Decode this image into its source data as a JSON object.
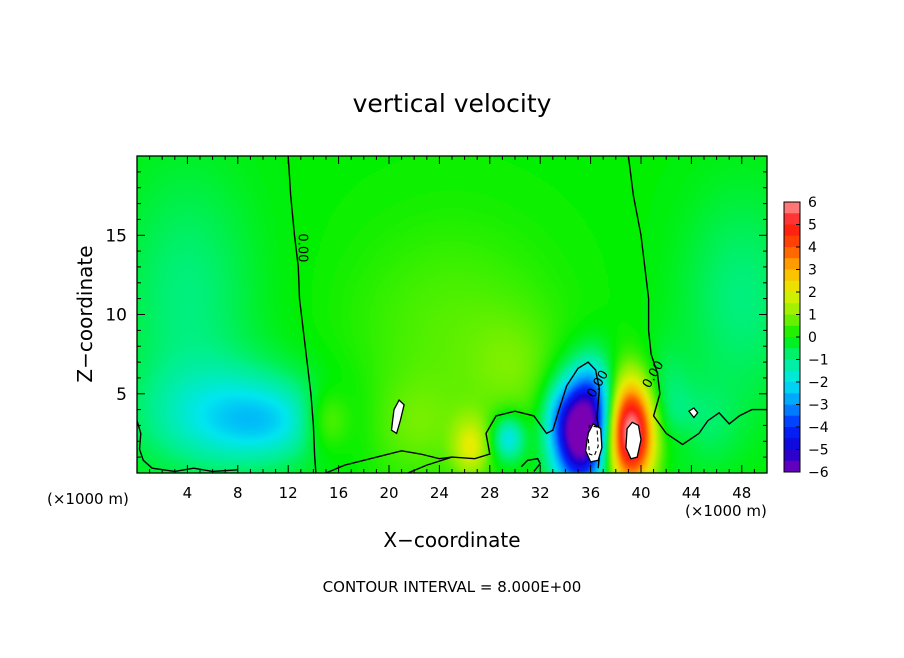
{
  "chart_data": {
    "type": "heatmap",
    "title": "vertical velocity",
    "xlabel": "X−coordinate",
    "ylabel": "Z−coordinate",
    "x_unit_left": "(×1000 m)",
    "x_unit_right": "(×1000 m)",
    "xlim": [
      0,
      50
    ],
    "ylim": [
      0,
      20
    ],
    "x_ticks": [
      4,
      8,
      12,
      16,
      20,
      24,
      28,
      32,
      36,
      40,
      44,
      48
    ],
    "y_ticks": [
      5,
      10,
      15
    ],
    "footer": "CONTOUR INTERVAL = 8.000E+00",
    "contour_label": "0.00",
    "colorbar": {
      "min": -6,
      "max": 6,
      "labels": [
        "6",
        "5",
        "4",
        "3",
        "2",
        "1",
        "0",
        "−1",
        "−2",
        "−3",
        "−4",
        "−5",
        "−6"
      ],
      "stops": [
        {
          "v": -6,
          "c": "#7a00b4"
        },
        {
          "v": -5,
          "c": "#1400d2"
        },
        {
          "v": -4,
          "c": "#0028ff"
        },
        {
          "v": -3,
          "c": "#0096ff"
        },
        {
          "v": -2,
          "c": "#00e6f0"
        },
        {
          "v": -1,
          "c": "#00f08c"
        },
        {
          "v": 0,
          "c": "#00f000"
        },
        {
          "v": 1,
          "c": "#8cf000"
        },
        {
          "v": 2,
          "c": "#e6ee00"
        },
        {
          "v": 3,
          "c": "#ffb400"
        },
        {
          "v": 4,
          "c": "#ff5000"
        },
        {
          "v": 5,
          "c": "#ff1414"
        },
        {
          "v": 6,
          "c": "#ff9696"
        }
      ]
    },
    "features": [
      {
        "x": 35.2,
        "z": 2.4,
        "amp": -6.5,
        "sx": 1.5,
        "sz": 2.4
      },
      {
        "x": 39.2,
        "z": 2.6,
        "amp": 6.8,
        "sx": 1.4,
        "sz": 2.3
      },
      {
        "x": 8,
        "z": 3.5,
        "amp": -1.7,
        "sx": 5,
        "sz": 2.3
      },
      {
        "x": 10.5,
        "z": 3.2,
        "amp": -0.8,
        "sx": 3,
        "sz": 1.5
      },
      {
        "x": 4,
        "z": 11,
        "amp": -0.9,
        "sx": 4,
        "sz": 6
      },
      {
        "x": 48,
        "z": 11,
        "amp": -0.9,
        "sx": 3.5,
        "sz": 5
      },
      {
        "x": 29.5,
        "z": 2.2,
        "amp": -2.2,
        "sx": 0.9,
        "sz": 1
      },
      {
        "x": 26.5,
        "z": 1.6,
        "amp": 1.7,
        "sx": 1,
        "sz": 1.3
      },
      {
        "x": 15,
        "z": 3.3,
        "amp": 1.2,
        "sx": 1.3,
        "sz": 1.4
      },
      {
        "x": 22,
        "z": 2.8,
        "amp": 0.6,
        "sx": 2.8,
        "sz": 2.2
      },
      {
        "x": 36.5,
        "z": 4.5,
        "amp": -2,
        "sx": 1.2,
        "sz": 2
      },
      {
        "x": 33.5,
        "z": 3.5,
        "amp": -0.9,
        "sx": 1,
        "sz": 1.5
      },
      {
        "x": 25,
        "z": 9,
        "amp": 0.6,
        "sx": 6,
        "sz": 5
      },
      {
        "x": 30,
        "z": 6.5,
        "amp": 0.5,
        "sx": 2.5,
        "sz": 2.5
      },
      {
        "x": 41.5,
        "z": 4,
        "amp": -1.1,
        "sx": 1.5,
        "sz": 2.5
      },
      {
        "x": 45,
        "z": 3,
        "amp": -0.6,
        "sx": 2,
        "sz": 2
      },
      {
        "x": 43,
        "z": 2,
        "amp": 0.4,
        "sx": 1.2,
        "sz": 1
      }
    ],
    "zero_contours": [
      [
        [
          12,
          20
        ],
        [
          12.2,
          17.5
        ],
        [
          12.5,
          15
        ],
        [
          12.8,
          13
        ],
        [
          12.9,
          11
        ],
        [
          13.2,
          9
        ],
        [
          13.5,
          7
        ],
        [
          13.8,
          5
        ],
        [
          14,
          3
        ],
        [
          14.1,
          1
        ],
        [
          14.2,
          0
        ]
      ],
      [
        [
          39,
          20
        ],
        [
          39.4,
          17.5
        ],
        [
          40,
          15
        ],
        [
          40.3,
          13
        ],
        [
          40.6,
          11
        ],
        [
          40.6,
          9
        ],
        [
          40.8,
          7.5
        ],
        [
          41.3,
          6.3
        ],
        [
          41.5,
          5
        ],
        [
          41,
          3.6
        ],
        [
          42,
          2.5
        ],
        [
          43.3,
          1.8
        ],
        [
          44.6,
          2.5
        ],
        [
          45.3,
          3.3
        ],
        [
          46.2,
          3.8
        ],
        [
          47,
          3.1
        ],
        [
          47.8,
          3.6
        ],
        [
          48.8,
          4
        ],
        [
          50,
          4
        ]
      ],
      [
        [
          0,
          3.3
        ],
        [
          0.3,
          2.5
        ],
        [
          0.2,
          1.5
        ],
        [
          0.5,
          0.8
        ],
        [
          1.2,
          0.3
        ],
        [
          3,
          0.1
        ],
        [
          4.5,
          0.3
        ],
        [
          6,
          0.1
        ],
        [
          8,
          0.2
        ]
      ],
      [
        [
          21.5,
          0
        ],
        [
          23,
          0.5
        ],
        [
          25,
          1
        ],
        [
          26.8,
          0.9
        ],
        [
          28,
          1.2
        ],
        [
          27.7,
          2.5
        ],
        [
          28.5,
          3.6
        ],
        [
          30,
          3.9
        ],
        [
          31.5,
          3.6
        ],
        [
          32.5,
          2.5
        ],
        [
          33,
          2.7
        ],
        [
          33.5,
          4
        ],
        [
          34.1,
          5.5
        ],
        [
          35,
          6.6
        ],
        [
          35.8,
          7
        ],
        [
          36.4,
          6.5
        ],
        [
          36.7,
          5.3
        ],
        [
          36.5,
          3.5
        ],
        [
          36.8,
          2
        ],
        [
          36.6,
          0.3
        ]
      ],
      [
        [
          15,
          0
        ],
        [
          16.5,
          0.5
        ],
        [
          18,
          0.8
        ],
        [
          19.5,
          1.1
        ],
        [
          21,
          1.4
        ],
        [
          22.5,
          1.2
        ],
        [
          24,
          0.9
        ],
        [
          25,
          1
        ]
      ],
      [
        [
          30.5,
          0.4
        ],
        [
          31,
          0.8
        ],
        [
          31.8,
          0.9
        ],
        [
          32,
          0.6
        ],
        [
          31.5,
          0.1
        ]
      ]
    ],
    "closed_contours": [
      [
        [
          20.4,
          4
        ],
        [
          20.8,
          4.6
        ],
        [
          21.2,
          4.3
        ],
        [
          20.9,
          3.3
        ],
        [
          20.6,
          2.5
        ],
        [
          20.2,
          2.7
        ],
        [
          20.3,
          3.4
        ],
        [
          20.4,
          4
        ]
      ],
      [
        [
          35.8,
          2.5
        ],
        [
          36.2,
          3.1
        ],
        [
          36.8,
          2.8
        ],
        [
          36.9,
          1.6
        ],
        [
          36.6,
          0.8
        ],
        [
          36,
          0.7
        ],
        [
          35.6,
          1.4
        ],
        [
          35.8,
          2.5
        ]
      ],
      [
        [
          38.9,
          2.8
        ],
        [
          39.3,
          3.2
        ],
        [
          39.8,
          3
        ],
        [
          40,
          2.1
        ],
        [
          39.7,
          1
        ],
        [
          39.2,
          0.9
        ],
        [
          38.8,
          1.6
        ],
        [
          38.9,
          2.8
        ]
      ],
      [
        [
          43.8,
          3.9
        ],
        [
          44.2,
          4.1
        ],
        [
          44.5,
          3.8
        ],
        [
          44.2,
          3.5
        ],
        [
          43.8,
          3.9
        ]
      ]
    ],
    "dashed_contours": [
      [
        [
          35.8,
          2.4
        ],
        [
          35.9,
          3
        ],
        [
          36.5,
          2.9
        ],
        [
          36.6,
          1.7
        ],
        [
          36.3,
          1.1
        ],
        [
          35.9,
          1.2
        ],
        [
          35.8,
          2.4
        ]
      ]
    ]
  }
}
